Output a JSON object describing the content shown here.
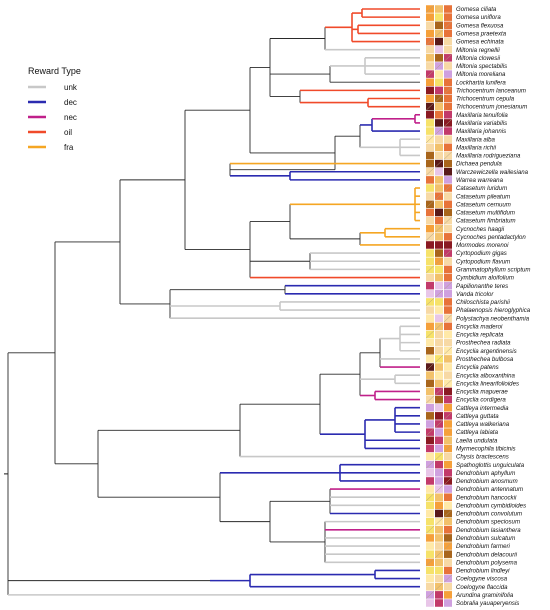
{
  "legend": {
    "title": "Reward Type",
    "items": [
      {
        "key": "unk",
        "label": "unk",
        "color": "#c8c8c8"
      },
      {
        "key": "dec",
        "label": "dec",
        "color": "#2b2bb0"
      },
      {
        "key": "nec",
        "label": "nec",
        "color": "#c0208a"
      },
      {
        "key": "oil",
        "label": "oil",
        "color": "#f04a2a"
      },
      {
        "key": "fra",
        "label": "fra",
        "color": "#f5a623"
      }
    ]
  },
  "trait_palette": [
    "#f6e26a",
    "#f5a03a",
    "#e7733a",
    "#a8651c",
    "#5a1a1a",
    "#8a1a22",
    "#c23a6a",
    "#e8c6e8",
    "#cfa0df",
    "#f7d9a5",
    "#f2c16b",
    "#ffe9a8"
  ],
  "taxa": [
    {
      "name": "Gomesa ciliata",
      "reward": "oil",
      "cells": [
        1,
        10,
        2
      ]
    },
    {
      "name": "Gomesa uniflora",
      "reward": "oil",
      "cells": [
        1,
        0,
        2
      ]
    },
    {
      "name": "Gomesa flexuosa",
      "reward": "oil",
      "cells": [
        9,
        3,
        2
      ]
    },
    {
      "name": "Gomesa praetexta",
      "reward": "oil",
      "cells": [
        1,
        10,
        2
      ]
    },
    {
      "name": "Gomesa echinata",
      "reward": "oil",
      "cells": [
        2,
        4,
        9
      ]
    },
    {
      "name": "Miltonia regnellii",
      "reward": "unk",
      "cells": [
        9,
        7,
        9
      ]
    },
    {
      "name": "Miltonia clowesii",
      "reward": "unk",
      "cells": [
        10,
        3,
        6
      ]
    },
    {
      "name": "Miltonia spectabilis",
      "reward": "unk",
      "cells": [
        9,
        8,
        9
      ]
    },
    {
      "name": "Miltonia moreliana",
      "reward": "unk",
      "cells": [
        6,
        11,
        8
      ]
    },
    {
      "name": "Lockhartia lunifera",
      "reward": "oil",
      "cells": [
        1,
        0,
        2
      ]
    },
    {
      "name": "Trichocentrum lanceanum",
      "reward": "oil",
      "cells": [
        5,
        6,
        2
      ]
    },
    {
      "name": "Trichocentrum cepula",
      "reward": "oil",
      "cells": [
        1,
        3,
        2
      ]
    },
    {
      "name": "Trichocentrum jonesianum",
      "reward": "oil",
      "cells": [
        4,
        10,
        2
      ]
    },
    {
      "name": "Maxillaria tenuifolia",
      "reward": "nec",
      "cells": [
        5,
        2,
        6
      ]
    },
    {
      "name": "Maxillaria variabilis",
      "reward": "unk",
      "cells": [
        0,
        4,
        5
      ]
    },
    {
      "name": "Maxillaria johannis",
      "reward": "dec",
      "cells": [
        0,
        8,
        6
      ]
    },
    {
      "name": "Maxillaria alba",
      "reward": "unk",
      "cells": [
        11,
        9,
        9
      ]
    },
    {
      "name": "Maxillaria richii",
      "reward": "unk",
      "cells": [
        9,
        10,
        2
      ]
    },
    {
      "name": "Maxillaria rodrigueziana",
      "reward": "unk",
      "cells": [
        3,
        9,
        9
      ]
    },
    {
      "name": "Dichaea pendula",
      "reward": "fra",
      "cells": [
        3,
        4,
        3
      ]
    },
    {
      "name": "Warczewiczella wailesiana",
      "reward": "dec",
      "cells": [
        9,
        7,
        4
      ]
    },
    {
      "name": "Warrea warreana",
      "reward": "dec",
      "cells": [
        2,
        10,
        8
      ]
    },
    {
      "name": "Catasetum luridum",
      "reward": "fra",
      "cells": [
        0,
        10,
        2
      ]
    },
    {
      "name": "Catasetum pileatum",
      "reward": "fra",
      "cells": [
        9,
        2,
        9
      ]
    },
    {
      "name": "Catasetum cernuum",
      "reward": "fra",
      "cells": [
        3,
        10,
        2
      ]
    },
    {
      "name": "Catasetum multifidum",
      "reward": "fra",
      "cells": [
        2,
        4,
        3
      ]
    },
    {
      "name": "Catasetum fimbriatum",
      "reward": "fra",
      "cells": [
        9,
        2,
        9
      ]
    },
    {
      "name": "Cycnoches haagii",
      "reward": "fra",
      "cells": [
        1,
        10,
        9
      ]
    },
    {
      "name": "Cycnoches pentadactylon",
      "reward": "fra",
      "cells": [
        9,
        10,
        2
      ]
    },
    {
      "name": "Mormodes morenoi",
      "reward": "fra",
      "cells": [
        5,
        5,
        5
      ]
    },
    {
      "name": "Cyrtopodium gigas",
      "reward": "unk",
      "cells": [
        0,
        3,
        6
      ]
    },
    {
      "name": "Cyrtopodium flavum",
      "reward": "unk",
      "cells": [
        0,
        1,
        9
      ]
    },
    {
      "name": "Grammatophyllum scriptum",
      "reward": "unk",
      "cells": [
        0,
        0,
        2
      ]
    },
    {
      "name": "Cymbidium aloifolium",
      "reward": "oil",
      "cells": [
        9,
        10,
        2
      ]
    },
    {
      "name": "Papilionanthe teres",
      "reward": "dec",
      "cells": [
        6,
        7,
        8
      ]
    },
    {
      "name": "Vanda tricolor",
      "reward": "dec",
      "cells": [
        7,
        8,
        8
      ]
    },
    {
      "name": "Chiloschista parishii",
      "reward": "unk",
      "cells": [
        0,
        0,
        2
      ]
    },
    {
      "name": "Phalaenopsis hieroglyphica",
      "reward": "unk",
      "cells": [
        9,
        11,
        2
      ]
    },
    {
      "name": "Polystachya neobenthamia",
      "reward": "unk",
      "cells": [
        11,
        7,
        9
      ]
    },
    {
      "name": "Encyclia maderoi",
      "reward": "unk",
      "cells": [
        1,
        10,
        2
      ]
    },
    {
      "name": "Encyclia replicata",
      "reward": "unk",
      "cells": [
        0,
        9,
        11
      ]
    },
    {
      "name": "Prosthechea radiata",
      "reward": "unk",
      "cells": [
        11,
        9,
        9
      ]
    },
    {
      "name": "Encyclia argentinensis",
      "reward": "unk",
      "cells": [
        3,
        9,
        11
      ]
    },
    {
      "name": "Prosthechea bulbosa",
      "reward": "unk",
      "cells": [
        11,
        0,
        10
      ]
    },
    {
      "name": "Encyclia patens",
      "reward": "nec",
      "cells": [
        4,
        10,
        11
      ]
    },
    {
      "name": "Encyclia alboxanthina",
      "reward": "unk",
      "cells": [
        10,
        11,
        9
      ]
    },
    {
      "name": "Encyclia linearifolioides",
      "reward": "unk",
      "cells": [
        3,
        10,
        11
      ]
    },
    {
      "name": "Encyclia mapuerae",
      "reward": "nec",
      "cells": [
        10,
        6,
        5
      ]
    },
    {
      "name": "Encyclia cordigera",
      "reward": "nec",
      "cells": [
        9,
        3,
        6
      ]
    },
    {
      "name": "Cattleya intermedia",
      "reward": "dec",
      "cells": [
        8,
        7,
        1
      ]
    },
    {
      "name": "Cattleya guttata",
      "reward": "dec",
      "cells": [
        3,
        5,
        6
      ]
    },
    {
      "name": "Cattleya walkeriana",
      "reward": "dec",
      "cells": [
        8,
        6,
        1
      ]
    },
    {
      "name": "Cattleya labiata",
      "reward": "dec",
      "cells": [
        6,
        8,
        1
      ]
    },
    {
      "name": "Laelia undulata",
      "reward": "dec",
      "cells": [
        5,
        6,
        10
      ]
    },
    {
      "name": "Myrmecophila tibicinis",
      "reward": "dec",
      "cells": [
        6,
        8,
        1
      ]
    },
    {
      "name": "Chysis bractescens",
      "reward": "unk",
      "cells": [
        11,
        0,
        9
      ]
    },
    {
      "name": "Spathoglottis unguiculata",
      "reward": "dec",
      "cells": [
        8,
        6,
        1
      ]
    },
    {
      "name": "Dendrobium aphyllum",
      "reward": "dec",
      "cells": [
        7,
        8,
        6
      ]
    },
    {
      "name": "Dendrobium anosmum",
      "reward": "dec",
      "cells": [
        6,
        8,
        5
      ]
    },
    {
      "name": "Dendrobium antennatum",
      "reward": "dec",
      "cells": [
        11,
        7,
        8
      ]
    },
    {
      "name": "Dendrobium hancockii",
      "reward": "nec",
      "cells": [
        0,
        10,
        2
      ]
    },
    {
      "name": "Dendrobium cymbidioides",
      "reward": "unk",
      "cells": [
        0,
        1,
        11
      ]
    },
    {
      "name": "Dendrobium convolutum",
      "reward": "unk",
      "cells": [
        11,
        4,
        3
      ]
    },
    {
      "name": "Dendrobium speciosum",
      "reward": "dec",
      "cells": [
        0,
        11,
        10
      ]
    },
    {
      "name": "Dendrobium lasianthera",
      "reward": "unk",
      "cells": [
        0,
        10,
        2
      ]
    },
    {
      "name": "Dendrobium sulcatum",
      "reward": "nec",
      "cells": [
        1,
        10,
        3
      ]
    },
    {
      "name": "Dendrobium farmeri",
      "reward": "unk",
      "cells": [
        11,
        9,
        1
      ]
    },
    {
      "name": "Dendrobium delacourii",
      "reward": "unk",
      "cells": [
        0,
        10,
        3
      ]
    },
    {
      "name": "Dendrobium polysema",
      "reward": "unk",
      "cells": [
        1,
        10,
        9
      ]
    },
    {
      "name": "Dendrobium lindleyi",
      "reward": "unk",
      "cells": [
        0,
        0,
        2
      ]
    },
    {
      "name": "Coelogyne viscosa",
      "reward": "dec",
      "cells": [
        11,
        9,
        8
      ]
    },
    {
      "name": "Coelogyne flaccida",
      "reward": "dec",
      "cells": [
        9,
        10,
        9
      ]
    },
    {
      "name": "Arundina graminifolia",
      "reward": "dec",
      "cells": [
        8,
        6,
        1
      ]
    },
    {
      "name": "Sobralia yauaperyensis",
      "reward": "unk",
      "cells": [
        7,
        6,
        8
      ]
    }
  ]
}
